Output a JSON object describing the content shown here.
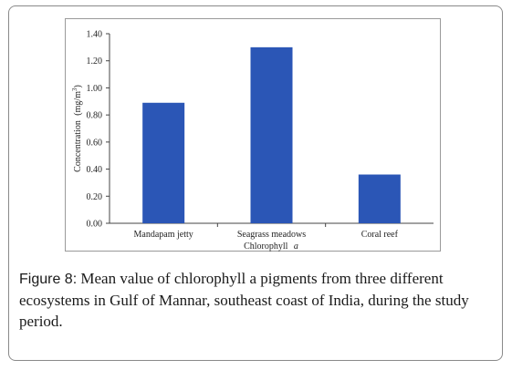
{
  "chart_data": {
    "type": "bar",
    "categories": [
      "Mandapam jetty",
      "Seagrass meadows",
      "Coral reef"
    ],
    "values": [
      0.89,
      1.3,
      0.36
    ],
    "ylim": [
      0,
      1.4
    ],
    "yticks": [
      "0.00",
      "0.20",
      "0.40",
      "0.60",
      "0.80",
      "1.00",
      "1.20",
      "1.40"
    ],
    "ylabel_main": "Concentration",
    "ylabel_unit": "(mg/m",
    "ylabel_unit_sup": "3",
    "ylabel_unit_close": ")",
    "xlabel_main": "Chlorophyll",
    "xlabel_italic": "a",
    "bar_color": "#2b56b6",
    "grid": false
  },
  "caption": {
    "label": "Figure 8:",
    "text": " Mean value of chlorophyll a pigments from three different ecosystems in Gulf of Mannar, southeast coast of India, during the study period."
  }
}
